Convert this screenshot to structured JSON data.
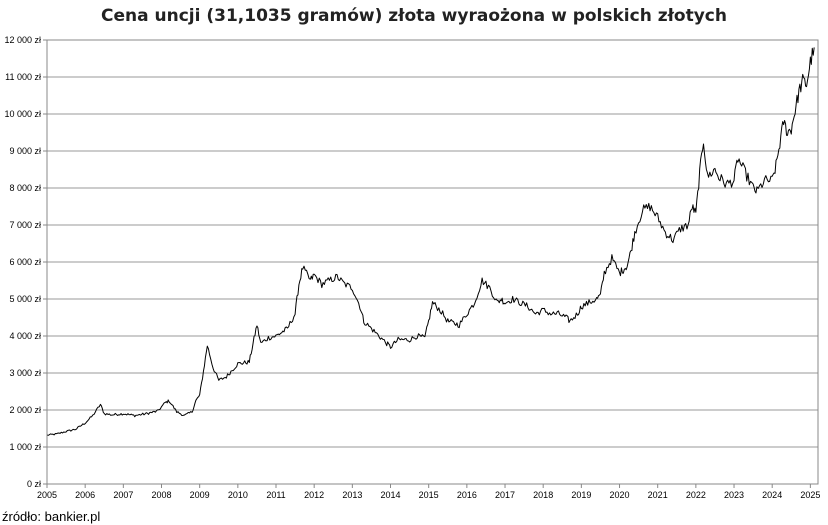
{
  "chart_data": {
    "type": "line",
    "title": "Cena uncji (31,1035 gramów) złota wyraożona w polskich złotych",
    "xlabel": "",
    "ylabel": "",
    "ylim": [
      0,
      12000
    ],
    "xlim": [
      2005,
      2025.2
    ],
    "grid": "horizontal",
    "legend": "none",
    "yticks": [
      {
        "value": 0,
        "label": "0 zł"
      },
      {
        "value": 1000,
        "label": "1 000 zł"
      },
      {
        "value": 2000,
        "label": "2 000 zł"
      },
      {
        "value": 3000,
        "label": "3 000 zł"
      },
      {
        "value": 4000,
        "label": "4 000 zł"
      },
      {
        "value": 5000,
        "label": "5 000 zł"
      },
      {
        "value": 6000,
        "label": "6 000 zł"
      },
      {
        "value": 7000,
        "label": "7 000 zł"
      },
      {
        "value": 8000,
        "label": "8 000 zł"
      },
      {
        "value": 9000,
        "label": "9 000 zł"
      },
      {
        "value": 10000,
        "label": "10 000 zł"
      },
      {
        "value": 11000,
        "label": "11 000 zł"
      },
      {
        "value": 12000,
        "label": "12 000 zł"
      }
    ],
    "xticks": [
      {
        "value": 2005,
        "label": "2005"
      },
      {
        "value": 2006,
        "label": "2006"
      },
      {
        "value": 2007,
        "label": "2007"
      },
      {
        "value": 2008,
        "label": "2008"
      },
      {
        "value": 2009,
        "label": "2009"
      },
      {
        "value": 2010,
        "label": "2010"
      },
      {
        "value": 2011,
        "label": "2011"
      },
      {
        "value": 2012,
        "label": "2012"
      },
      {
        "value": 2013,
        "label": "2013"
      },
      {
        "value": 2014,
        "label": "2014"
      },
      {
        "value": 2015,
        "label": "2015"
      },
      {
        "value": 2016,
        "label": "2016"
      },
      {
        "value": 2017,
        "label": "2017"
      },
      {
        "value": 2018,
        "label": "2018"
      },
      {
        "value": 2019,
        "label": "2019"
      },
      {
        "value": 2020,
        "label": "2020"
      },
      {
        "value": 2021,
        "label": "2021"
      },
      {
        "value": 2022,
        "label": "2022"
      },
      {
        "value": 2023,
        "label": "2023"
      },
      {
        "value": 2024,
        "label": "2024"
      },
      {
        "value": 2025,
        "label": "2025"
      }
    ],
    "line_color": "#000000",
    "series": [
      {
        "x": [
          2005.0,
          2005.25,
          2005.5,
          2005.75,
          2006.0,
          2006.2,
          2006.4,
          2006.5,
          2006.7,
          2007.0,
          2007.3,
          2007.6,
          2007.9,
          2008.1,
          2008.2,
          2008.4,
          2008.6,
          2008.8,
          2008.9,
          2009.0,
          2009.1,
          2009.2,
          2009.35,
          2009.5,
          2009.7,
          2010.0,
          2010.3,
          2010.4,
          2010.5,
          2010.6,
          2010.8,
          2011.0,
          2011.3,
          2011.5,
          2011.6,
          2011.7,
          2011.9,
          2012.0,
          2012.2,
          2012.4,
          2012.6,
          2012.8,
          2013.0,
          2013.2,
          2013.3,
          2013.5,
          2013.7,
          2013.9,
          2014.0,
          2014.2,
          2014.5,
          2014.7,
          2014.9,
          2015.0,
          2015.1,
          2015.3,
          2015.5,
          2015.8,
          2016.0,
          2016.2,
          2016.4,
          2016.6,
          2016.8,
          2016.9,
          2017.0,
          2017.2,
          2017.4,
          2017.6,
          2017.8,
          2018.0,
          2018.2,
          2018.4,
          2018.6,
          2018.7,
          2018.9,
          2019.0,
          2019.2,
          2019.4,
          2019.5,
          2019.6,
          2019.8,
          2020.0,
          2020.1,
          2020.2,
          2020.3,
          2020.4,
          2020.6,
          2020.8,
          2021.0,
          2021.2,
          2021.4,
          2021.6,
          2021.8,
          2021.9,
          2022.0,
          2022.1,
          2022.2,
          2022.3,
          2022.5,
          2022.6,
          2022.8,
          2023.0,
          2023.1,
          2023.3,
          2023.5,
          2023.6,
          2023.8,
          2024.0,
          2024.1,
          2024.2,
          2024.3,
          2024.4,
          2024.5,
          2024.6,
          2024.7,
          2024.8,
          2024.9,
          2025.0,
          2025.1
        ],
        "values": [
          1320,
          1350,
          1420,
          1480,
          1650,
          1850,
          2150,
          1900,
          1870,
          1900,
          1850,
          1900,
          1970,
          2200,
          2250,
          1950,
          1850,
          1950,
          2250,
          2400,
          3050,
          3750,
          3150,
          2800,
          2900,
          3250,
          3300,
          3800,
          4300,
          3800,
          3950,
          4000,
          4200,
          4600,
          5400,
          5850,
          5500,
          5650,
          5400,
          5500,
          5600,
          5400,
          5300,
          4800,
          4400,
          4200,
          4000,
          3800,
          3700,
          3900,
          3900,
          4000,
          3950,
          4400,
          4900,
          4700,
          4400,
          4300,
          4600,
          4900,
          5500,
          5300,
          4900,
          5000,
          4900,
          5000,
          4900,
          4800,
          4600,
          4700,
          4600,
          4600,
          4500,
          4400,
          4600,
          4800,
          4900,
          5000,
          5100,
          5700,
          6100,
          5700,
          5800,
          5900,
          6300,
          6800,
          7400,
          7500,
          7200,
          6800,
          6600,
          6900,
          7000,
          7500,
          7300,
          8400,
          9300,
          8300,
          8500,
          8300,
          8100,
          8200,
          8800,
          8400,
          8000,
          7900,
          8200,
          8200,
          8600,
          9200,
          9800,
          9500,
          9600,
          10100,
          10600,
          10900,
          10800,
          11400,
          11800
        ]
      }
    ]
  },
  "source_note": "źródło: bankier.pl"
}
